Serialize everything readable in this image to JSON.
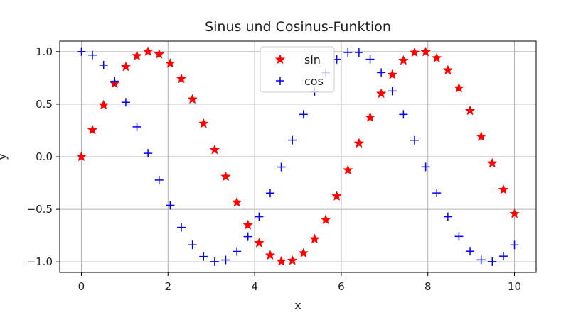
{
  "chart_data": {
    "type": "scatter",
    "title": "Sinus und Cosinus-Funktion",
    "xlabel": "x",
    "ylabel": "y",
    "xlim": [
      -0.5,
      10.5
    ],
    "ylim": [
      -1.1,
      1.1
    ],
    "xticks": [
      0,
      2,
      4,
      6,
      8,
      10
    ],
    "xtick_labels": [
      "0",
      "2",
      "4",
      "6",
      "8",
      "10"
    ],
    "yticks": [
      -1.0,
      -0.5,
      0.0,
      0.5,
      1.0
    ],
    "ytick_labels": [
      "−1.0",
      "−0.5",
      "0.0",
      "0.5",
      "1.0"
    ],
    "grid": true,
    "legend_position": "top-center",
    "x": [
      0.0,
      0.256,
      0.513,
      0.769,
      1.026,
      1.282,
      1.538,
      1.795,
      2.051,
      2.308,
      2.564,
      2.821,
      3.077,
      3.333,
      3.59,
      3.846,
      4.103,
      4.359,
      4.615,
      4.872,
      5.128,
      5.385,
      5.641,
      5.897,
      6.154,
      6.41,
      6.667,
      6.923,
      7.179,
      7.436,
      7.692,
      7.949,
      8.205,
      8.462,
      8.718,
      8.974,
      9.231,
      9.487,
      9.744,
      10.0
    ],
    "series": [
      {
        "name": "sin",
        "marker": "star",
        "color": "#ff0000",
        "values": [
          0.0,
          0.254,
          0.491,
          0.696,
          0.855,
          0.959,
          1.0,
          0.975,
          0.887,
          0.741,
          0.546,
          0.315,
          0.065,
          -0.19,
          -0.434,
          -0.65,
          -0.821,
          -0.938,
          -0.995,
          -0.988,
          -0.917,
          -0.784,
          -0.6,
          -0.376,
          -0.128,
          0.127,
          0.374,
          0.6,
          0.78,
          0.915,
          0.991,
          0.996,
          0.939,
          0.823,
          0.652,
          0.437,
          0.191,
          -0.062,
          -0.314,
          -0.544
        ]
      },
      {
        "name": "cos",
        "marker": "plus",
        "color": "#0000ff",
        "values": [
          1.0,
          0.967,
          0.871,
          0.718,
          0.518,
          0.284,
          0.033,
          -0.222,
          -0.462,
          -0.672,
          -0.838,
          -0.949,
          -0.998,
          -0.982,
          -0.901,
          -0.76,
          -0.571,
          -0.346,
          -0.098,
          0.158,
          0.403,
          0.621,
          0.799,
          0.926,
          0.992,
          0.992,
          0.927,
          0.8,
          0.625,
          0.403,
          0.157,
          -0.097,
          -0.345,
          -0.571,
          -0.758,
          -0.899,
          -0.981,
          -0.998,
          -0.946,
          -0.839
        ]
      }
    ]
  }
}
